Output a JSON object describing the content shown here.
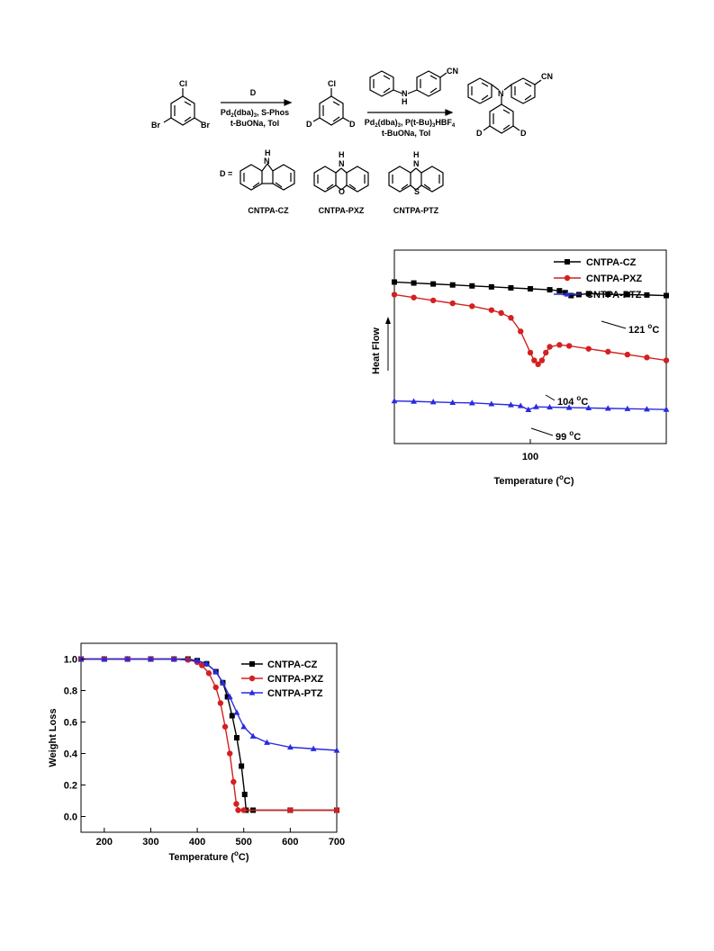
{
  "scheme": {
    "start_br_left": "Br",
    "start_br_right": "Br",
    "start_cl": "Cl",
    "arrow1_top": "D",
    "arrow1_line1": "Pd",
    "arrow1_line1_sub": "2",
    "arrow1_line1_mid": "(dba)",
    "arrow1_line1_sub2": "3",
    "arrow1_line1_end": ", S-Phos",
    "arrow1_line2": "t-BuONa, Tol",
    "mid_cl": "Cl",
    "mid_d_left": "D",
    "mid_d_right": "D",
    "reagent_cn": "CN",
    "reagent_nh_n": "N",
    "reagent_nh_h": "H",
    "arrow2_line1": "Pd",
    "arrow2_line1_sub": "2",
    "arrow2_line1_mid": "(dba)",
    "arrow2_line1_sub2": "3",
    "arrow2_line1_end": ", P(t-Bu)",
    "arrow2_line1_sub3": "3",
    "arrow2_line1_end2": "HBF",
    "arrow2_line1_sub4": "4",
    "arrow2_line2": "t-BuONa, Tol",
    "product_cn": "CN",
    "product_n": "N",
    "product_d_left": "D",
    "product_d_right": "D",
    "d_equals": "D =",
    "cz_h": "H",
    "cz_n": "N",
    "pxz_h": "H",
    "pxz_n": "N",
    "pxz_o": "O",
    "ptz_h": "H",
    "ptz_n": "N",
    "ptz_s": "S",
    "label_cz": "CNTPA-CZ",
    "label_pxz": "CNTPA-PXZ",
    "label_ptz": "CNTPA-PTZ"
  },
  "chart_data": [
    {
      "type": "line",
      "ylabel": "Heat Flow",
      "xlabel": "Temperature (°C)",
      "xlabel_main": "Temperature (",
      "xlabel_sup": "o",
      "xlabel_end": "C)",
      "x_ticks": [
        "100"
      ],
      "xlim": [
        30,
        170
      ],
      "y_ticks_shown": false,
      "legend_position": "top-right",
      "annotations": [
        {
          "text": "121 °C",
          "num": "121 ",
          "sup": "o",
          "unit": "C",
          "series": "CNTPA-CZ",
          "x": 121
        },
        {
          "text": "104 °C",
          "num": "104 ",
          "sup": "o",
          "unit": "C",
          "series": "CNTPA-PXZ",
          "x": 104
        },
        {
          "text": "99 °C",
          "num": "99 ",
          "sup": "o",
          "unit": "C",
          "series": "CNTPA-PTZ",
          "x": 99
        }
      ],
      "series": [
        {
          "name": "CNTPA-CZ",
          "color": "#000000",
          "marker": "square",
          "x": [
            30,
            40,
            50,
            60,
            70,
            80,
            90,
            100,
            110,
            115,
            118,
            121,
            125,
            130,
            140,
            150,
            160,
            170
          ],
          "y": [
            0.835,
            0.83,
            0.825,
            0.82,
            0.815,
            0.81,
            0.805,
            0.8,
            0.795,
            0.79,
            0.78,
            0.765,
            0.77,
            0.775,
            0.772,
            0.77,
            0.768,
            0.765
          ]
        },
        {
          "name": "CNTPA-PXZ",
          "color": "#d42020",
          "marker": "circle",
          "x": [
            30,
            40,
            50,
            60,
            70,
            80,
            85,
            90,
            95,
            100,
            102,
            104,
            106,
            108,
            110,
            115,
            120,
            130,
            140,
            150,
            160,
            170
          ],
          "y": [
            0.77,
            0.755,
            0.74,
            0.725,
            0.71,
            0.69,
            0.675,
            0.65,
            0.58,
            0.47,
            0.43,
            0.41,
            0.43,
            0.47,
            0.5,
            0.51,
            0.505,
            0.49,
            0.475,
            0.46,
            0.445,
            0.43
          ]
        },
        {
          "name": "CNTPA-PTZ",
          "color": "#2a2ae0",
          "marker": "triangle",
          "x": [
            30,
            40,
            50,
            60,
            70,
            80,
            90,
            95,
            99,
            103,
            110,
            120,
            130,
            140,
            150,
            160,
            170
          ],
          "y": [
            0.22,
            0.218,
            0.215,
            0.212,
            0.21,
            0.205,
            0.2,
            0.195,
            0.175,
            0.19,
            0.188,
            0.186,
            0.184,
            0.182,
            0.18,
            0.178,
            0.176
          ]
        }
      ]
    },
    {
      "type": "line",
      "ylabel": "Weight Loss",
      "xlabel": "Temperature (°C)",
      "xlabel_main": "Temperature (",
      "xlabel_sup": "o",
      "xlabel_end": "C)",
      "xlim": [
        150,
        700
      ],
      "ylim": [
        -0.1,
        1.1
      ],
      "x_ticks": [
        "200",
        "300",
        "400",
        "500",
        "600",
        "700"
      ],
      "y_ticks": [
        "0.0",
        "0.2",
        "0.4",
        "0.6",
        "0.8",
        "1.0"
      ],
      "legend_position": "top-right",
      "series": [
        {
          "name": "CNTPA-CZ",
          "color": "#000000",
          "marker": "square",
          "x": [
            150,
            200,
            250,
            300,
            350,
            380,
            400,
            420,
            440,
            455,
            465,
            475,
            485,
            495,
            502,
            505,
            520,
            600,
            700
          ],
          "y": [
            1.0,
            1.0,
            1.0,
            1.0,
            1.0,
            1.0,
            0.99,
            0.97,
            0.92,
            0.85,
            0.76,
            0.64,
            0.5,
            0.32,
            0.14,
            0.04,
            0.04,
            0.04,
            0.04
          ]
        },
        {
          "name": "CNTPA-PXZ",
          "color": "#d42020",
          "marker": "circle",
          "x": [
            150,
            200,
            250,
            300,
            350,
            380,
            400,
            410,
            425,
            440,
            450,
            460,
            470,
            478,
            484,
            488,
            500,
            600,
            700
          ],
          "y": [
            1.0,
            1.0,
            1.0,
            1.0,
            1.0,
            0.995,
            0.98,
            0.96,
            0.91,
            0.82,
            0.72,
            0.57,
            0.4,
            0.22,
            0.08,
            0.04,
            0.04,
            0.04,
            0.04
          ]
        },
        {
          "name": "CNTPA-PTZ",
          "color": "#2a2ae0",
          "marker": "triangle",
          "x": [
            150,
            200,
            250,
            300,
            350,
            400,
            420,
            440,
            455,
            470,
            485,
            500,
            520,
            550,
            600,
            650,
            700
          ],
          "y": [
            1.0,
            1.0,
            1.0,
            1.0,
            1.0,
            0.99,
            0.97,
            0.92,
            0.85,
            0.76,
            0.66,
            0.57,
            0.51,
            0.47,
            0.44,
            0.43,
            0.42
          ]
        }
      ]
    }
  ]
}
